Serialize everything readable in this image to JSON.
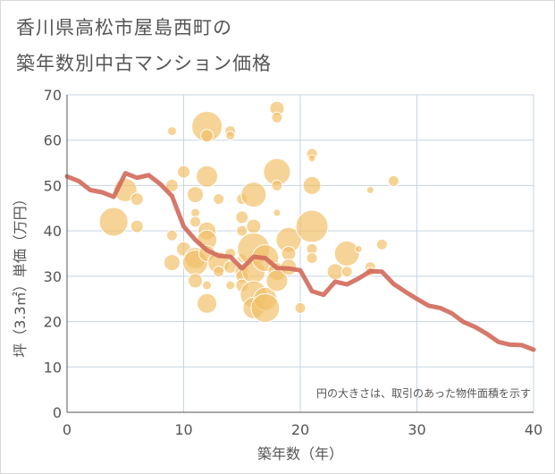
{
  "title_line1": "香川県高松市屋島西町の",
  "title_line2": "築年数別中古マンション価格",
  "chart_data": {
    "type": "scatter",
    "xlabel": "築年数（年）",
    "ylabel": "坪（3.3㎡）単価（万円）",
    "xlim": [
      0,
      40
    ],
    "ylim": [
      0,
      70
    ],
    "xticks": [
      0,
      10,
      20,
      30,
      40
    ],
    "yticks": [
      0,
      10,
      20,
      30,
      40,
      50,
      60,
      70
    ],
    "grid": true,
    "note": "円の大きさは、取引のあった物件面積を示す",
    "colors": {
      "bubble": "#f2c06a",
      "line": "#d2695a",
      "grid": "#c6d5e3",
      "axis": "#555555"
    },
    "bubbles": [
      {
        "x": 4,
        "y": 42,
        "size": 16
      },
      {
        "x": 5,
        "y": 49,
        "size": 13
      },
      {
        "x": 6,
        "y": 41,
        "size": 7
      },
      {
        "x": 6,
        "y": 47,
        "size": 7
      },
      {
        "x": 9,
        "y": 62,
        "size": 5
      },
      {
        "x": 9,
        "y": 50,
        "size": 7
      },
      {
        "x": 9,
        "y": 39,
        "size": 6
      },
      {
        "x": 9,
        "y": 33,
        "size": 9
      },
      {
        "x": 10,
        "y": 53,
        "size": 7
      },
      {
        "x": 10,
        "y": 36,
        "size": 8
      },
      {
        "x": 11,
        "y": 48,
        "size": 9
      },
      {
        "x": 11,
        "y": 44,
        "size": 5
      },
      {
        "x": 11,
        "y": 42,
        "size": 6
      },
      {
        "x": 11,
        "y": 34,
        "size": 12
      },
      {
        "x": 11,
        "y": 33,
        "size": 14
      },
      {
        "x": 11,
        "y": 29,
        "size": 8
      },
      {
        "x": 12,
        "y": 63,
        "size": 17
      },
      {
        "x": 12,
        "y": 61,
        "size": 7
      },
      {
        "x": 12,
        "y": 52,
        "size": 12
      },
      {
        "x": 12,
        "y": 40,
        "size": 10
      },
      {
        "x": 12,
        "y": 38,
        "size": 11
      },
      {
        "x": 12,
        "y": 35,
        "size": 9
      },
      {
        "x": 12,
        "y": 28,
        "size": 5
      },
      {
        "x": 12,
        "y": 24,
        "size": 11
      },
      {
        "x": 13,
        "y": 47,
        "size": 6
      },
      {
        "x": 13,
        "y": 33,
        "size": 12
      },
      {
        "x": 13,
        "y": 31,
        "size": 6
      },
      {
        "x": 14,
        "y": 62,
        "size": 6
      },
      {
        "x": 14,
        "y": 61,
        "size": 5
      },
      {
        "x": 14,
        "y": 35,
        "size": 6
      },
      {
        "x": 14,
        "y": 32,
        "size": 7
      },
      {
        "x": 14,
        "y": 28,
        "size": 5
      },
      {
        "x": 15,
        "y": 47,
        "size": 6
      },
      {
        "x": 15,
        "y": 43,
        "size": 7
      },
      {
        "x": 15,
        "y": 40,
        "size": 6
      },
      {
        "x": 15,
        "y": 34,
        "size": 5
      },
      {
        "x": 15,
        "y": 31,
        "size": 8
      },
      {
        "x": 15,
        "y": 30,
        "size": 7
      },
      {
        "x": 15,
        "y": 28,
        "size": 7
      },
      {
        "x": 16,
        "y": 48,
        "size": 14
      },
      {
        "x": 16,
        "y": 41,
        "size": 8
      },
      {
        "x": 16,
        "y": 36,
        "size": 18
      },
      {
        "x": 16,
        "y": 31,
        "size": 13
      },
      {
        "x": 16,
        "y": 26,
        "size": 15
      },
      {
        "x": 16,
        "y": 23,
        "size": 12
      },
      {
        "x": 17,
        "y": 34,
        "size": 15
      },
      {
        "x": 17,
        "y": 25,
        "size": 13
      },
      {
        "x": 17,
        "y": 23,
        "size": 16
      },
      {
        "x": 18,
        "y": 67,
        "size": 8
      },
      {
        "x": 18,
        "y": 65,
        "size": 6
      },
      {
        "x": 18,
        "y": 53,
        "size": 15
      },
      {
        "x": 18,
        "y": 50,
        "size": 6
      },
      {
        "x": 18,
        "y": 44,
        "size": 4
      },
      {
        "x": 18,
        "y": 31,
        "size": 10
      },
      {
        "x": 18,
        "y": 29,
        "size": 12
      },
      {
        "x": 19,
        "y": 38,
        "size": 14
      },
      {
        "x": 19,
        "y": 35,
        "size": 8
      },
      {
        "x": 19,
        "y": 32,
        "size": 9
      },
      {
        "x": 20,
        "y": 23,
        "size": 6
      },
      {
        "x": 21,
        "y": 57,
        "size": 6
      },
      {
        "x": 21,
        "y": 56,
        "size": 4
      },
      {
        "x": 21,
        "y": 50,
        "size": 10
      },
      {
        "x": 21,
        "y": 41,
        "size": 18
      },
      {
        "x": 21,
        "y": 36,
        "size": 6
      },
      {
        "x": 21,
        "y": 34,
        "size": 6
      },
      {
        "x": 23,
        "y": 31,
        "size": 9
      },
      {
        "x": 24,
        "y": 35,
        "size": 14
      },
      {
        "x": 24,
        "y": 31,
        "size": 6
      },
      {
        "x": 25,
        "y": 36,
        "size": 4
      },
      {
        "x": 26,
        "y": 49,
        "size": 4
      },
      {
        "x": 26,
        "y": 32,
        "size": 6
      },
      {
        "x": 26,
        "y": 31,
        "size": 5
      },
      {
        "x": 27,
        "y": 37,
        "size": 6
      },
      {
        "x": 28,
        "y": 51,
        "size": 6
      }
    ],
    "trend": [
      {
        "x": 0,
        "y": 52
      },
      {
        "x": 1,
        "y": 51
      },
      {
        "x": 2,
        "y": 49
      },
      {
        "x": 3,
        "y": 48.5
      },
      {
        "x": 4,
        "y": 47.5
      },
      {
        "x": 5,
        "y": 52.7
      },
      {
        "x": 6,
        "y": 51.7
      },
      {
        "x": 7,
        "y": 52.3
      },
      {
        "x": 8,
        "y": 50.3
      },
      {
        "x": 9,
        "y": 47.7
      },
      {
        "x": 10,
        "y": 41
      },
      {
        "x": 11,
        "y": 38
      },
      {
        "x": 12,
        "y": 35.7
      },
      {
        "x": 13,
        "y": 34.5
      },
      {
        "x": 14,
        "y": 34.3
      },
      {
        "x": 15,
        "y": 31.7
      },
      {
        "x": 16,
        "y": 34.3
      },
      {
        "x": 17,
        "y": 34
      },
      {
        "x": 18,
        "y": 31.8
      },
      {
        "x": 19,
        "y": 31.7
      },
      {
        "x": 20,
        "y": 31.3
      },
      {
        "x": 21,
        "y": 26.7
      },
      {
        "x": 22,
        "y": 25.9
      },
      {
        "x": 23,
        "y": 28.8
      },
      {
        "x": 24,
        "y": 28.2
      },
      {
        "x": 25,
        "y": 29.5
      },
      {
        "x": 26,
        "y": 31.1
      },
      {
        "x": 27,
        "y": 31
      },
      {
        "x": 28,
        "y": 28.3
      },
      {
        "x": 29,
        "y": 26.6
      },
      {
        "x": 30,
        "y": 25
      },
      {
        "x": 31,
        "y": 23.5
      },
      {
        "x": 32,
        "y": 23
      },
      {
        "x": 33,
        "y": 21.8
      },
      {
        "x": 34,
        "y": 19.9
      },
      {
        "x": 35,
        "y": 18.8
      },
      {
        "x": 36,
        "y": 17.3
      },
      {
        "x": 37,
        "y": 15.5
      },
      {
        "x": 38,
        "y": 14.9
      },
      {
        "x": 39,
        "y": 14.8
      },
      {
        "x": 40,
        "y": 13.8
      }
    ]
  }
}
